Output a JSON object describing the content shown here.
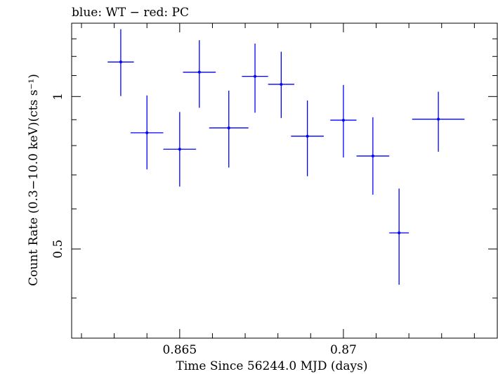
{
  "chart_data": {
    "type": "scatter",
    "title": "blue: WT − red: PC",
    "xlabel": "Time Since 56244.0 MJD (days)",
    "ylabel": "Count Rate (0.3−10.0 keV)(cts s⁻¹)",
    "xlim": [
      0.8617,
      0.8747
    ],
    "ylim": [
      0.3333,
      1.3957
    ],
    "yscale": "log",
    "x_ticks": [
      0.865,
      0.87
    ],
    "x_tick_labels": [
      "0.865",
      "0.87"
    ],
    "y_ticks": [
      0.5,
      1
    ],
    "y_tick_labels": [
      "0.5",
      "1"
    ],
    "grid": false,
    "series": [
      {
        "color": "#0000ff",
        "points": [
          {
            "x": 0.8632,
            "xerr": 0.0004,
            "y": 1.17,
            "ylo": 1.002,
            "yhi": 1.358
          },
          {
            "x": 0.864,
            "xerr": 0.0005,
            "y": 0.848,
            "ylo": 0.718,
            "yhi": 1.005
          },
          {
            "x": 0.865,
            "xerr": 0.0005,
            "y": 0.787,
            "ylo": 0.664,
            "yhi": 0.932
          },
          {
            "x": 0.8656,
            "xerr": 0.0005,
            "y": 1.117,
            "ylo": 0.95,
            "yhi": 1.292
          },
          {
            "x": 0.8665,
            "xerr": 0.0006,
            "y": 0.867,
            "ylo": 0.724,
            "yhi": 1.027
          },
          {
            "x": 0.8673,
            "xerr": 0.0004,
            "y": 1.096,
            "ylo": 0.929,
            "yhi": 1.272
          },
          {
            "x": 0.8681,
            "xerr": 0.0004,
            "y": 1.057,
            "ylo": 0.907,
            "yhi": 1.226
          },
          {
            "x": 0.8689,
            "xerr": 0.0005,
            "y": 0.835,
            "ylo": 0.696,
            "yhi": 0.982
          },
          {
            "x": 0.87,
            "xerr": 0.0004,
            "y": 0.898,
            "ylo": 0.758,
            "yhi": 1.054
          },
          {
            "x": 0.8709,
            "xerr": 0.0005,
            "y": 0.763,
            "ylo": 0.64,
            "yhi": 0.91
          },
          {
            "x": 0.8717,
            "xerr": 0.0003,
            "y": 0.538,
            "ylo": 0.425,
            "yhi": 0.658
          },
          {
            "x": 0.8729,
            "xerr": 0.0008,
            "y": 0.902,
            "ylo": 0.778,
            "yhi": 1.022
          }
        ]
      }
    ]
  }
}
